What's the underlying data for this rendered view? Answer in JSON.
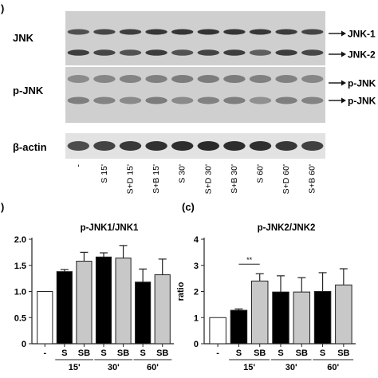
{
  "panel_a": {
    "label": ")",
    "rows": [
      {
        "name": "JNK",
        "arrows": [
          "JNK-1",
          "JNK-2"
        ]
      },
      {
        "name": "p-JNK",
        "arrows": [
          "p-JNK",
          "p-JNK"
        ]
      },
      {
        "name": "β-actin",
        "arrows": []
      }
    ],
    "lanes": [
      "-",
      "S 15'",
      "S+D 15'",
      "S+B 15'",
      "S 30'",
      "S+D 30'",
      "S+B 30'",
      "S 60'",
      "S+D 60'",
      "S+B 60'"
    ],
    "colors": {
      "blot_bg": "#cfcfcf",
      "band": "#2a2a2a"
    }
  },
  "chart_data": [
    {
      "panel": ")",
      "type": "bar",
      "title": "p-JNK1/JNK1",
      "ylabel": "",
      "ylim": [
        0,
        2.0
      ],
      "yticks": [
        "0",
        "0.5",
        "1.0",
        "1.5",
        "2.0"
      ],
      "categories": [
        "-",
        "S",
        "SB",
        "S",
        "SB",
        "S",
        "SB"
      ],
      "groups": [
        {
          "label": "15'",
          "from": 1,
          "to": 2
        },
        {
          "label": "30'",
          "from": 3,
          "to": 4
        },
        {
          "label": "60'",
          "from": 5,
          "to": 6
        }
      ],
      "values": [
        1.0,
        1.38,
        1.58,
        1.66,
        1.64,
        1.18,
        1.32
      ],
      "errors": [
        0.0,
        0.04,
        0.17,
        0.08,
        0.24,
        0.25,
        0.3
      ],
      "fills": [
        "#ffffff",
        "#000000",
        "#c8c8c8",
        "#000000",
        "#c8c8c8",
        "#000000",
        "#c8c8c8"
      ],
      "significance": []
    },
    {
      "panel": "(c)",
      "type": "bar",
      "title": "p-JNK2/JNK2",
      "ylabel": "ratio",
      "ylim": [
        0,
        4
      ],
      "yticks": [
        "0",
        "1",
        "2",
        "3",
        "4"
      ],
      "categories": [
        "-",
        "S",
        "SB",
        "S",
        "SB",
        "S",
        "SB"
      ],
      "groups": [
        {
          "label": "15'",
          "from": 1,
          "to": 2
        },
        {
          "label": "30'",
          "from": 3,
          "to": 4
        },
        {
          "label": "60'",
          "from": 5,
          "to": 6
        }
      ],
      "values": [
        1.0,
        1.28,
        2.4,
        1.98,
        1.98,
        2.0,
        2.25
      ],
      "errors": [
        0.0,
        0.05,
        0.28,
        0.62,
        0.55,
        0.72,
        0.62
      ],
      "fills": [
        "#ffffff",
        "#000000",
        "#c8c8c8",
        "#000000",
        "#c8c8c8",
        "#000000",
        "#c8c8c8"
      ],
      "significance": [
        {
          "from": 1,
          "to": 2,
          "label": "**"
        }
      ]
    }
  ]
}
